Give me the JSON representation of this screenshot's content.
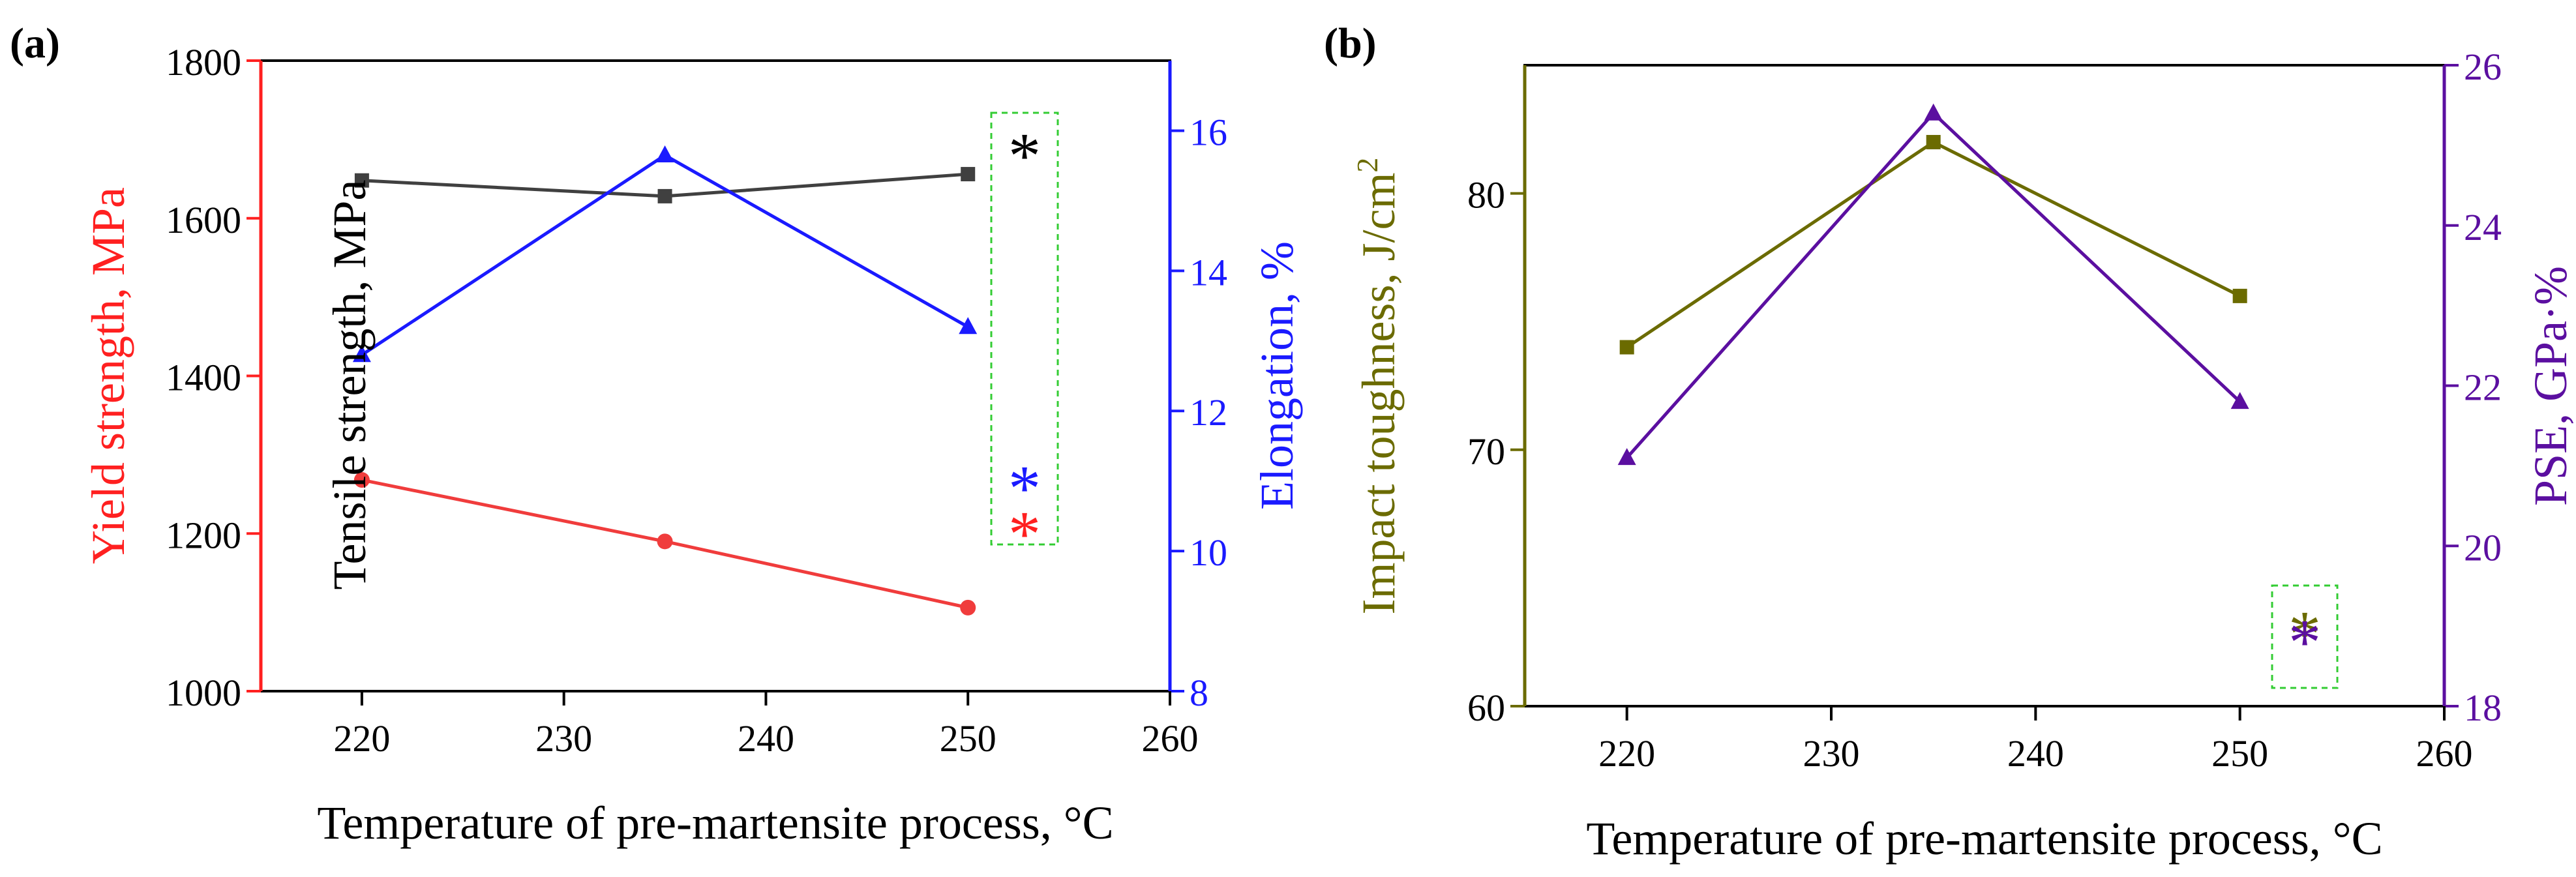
{
  "chart_data": [
    {
      "panel_label": "(a)",
      "type": "line",
      "x": [
        220,
        235,
        250
      ],
      "xlim": [
        215,
        260
      ],
      "xticks": [
        220,
        230,
        240,
        250,
        260
      ],
      "xlabel": "Temperature of pre-martensite process, °C",
      "left_axis": {
        "label_main": "Yield strength, MPa",
        "label_inner": "Tensile strength, MPa",
        "ylim": [
          1000,
          1800
        ],
        "ticks": [
          1000,
          1200,
          1400,
          1600,
          1800
        ],
        "color": "#ff2020"
      },
      "right_axis": {
        "label": "Elongation, %",
        "ylim": [
          8,
          17
        ],
        "ticks": [
          8,
          10,
          12,
          14,
          16
        ],
        "color": "#1a1aff"
      },
      "series": [
        {
          "name": "Tensile strength",
          "axis": "left",
          "color": "#404040",
          "marker": "square",
          "values": [
            1648,
            1628,
            1656
          ]
        },
        {
          "name": "Yield strength",
          "axis": "left",
          "color": "#f03c3c",
          "marker": "circle",
          "values": [
            1268,
            1190,
            1106
          ]
        },
        {
          "name": "Elongation",
          "axis": "right",
          "color": "#1a1aff",
          "marker": "triangle",
          "values": [
            12.8,
            15.65,
            13.2
          ]
        }
      ],
      "annotation_symbol": "*",
      "annotation_colors": [
        "#000000",
        "#1a1aff",
        "#ff2020"
      ]
    },
    {
      "panel_label": "(b)",
      "type": "line",
      "x": [
        220,
        235,
        250
      ],
      "xlim": [
        215,
        260
      ],
      "xticks": [
        220,
        230,
        240,
        250,
        260
      ],
      "xlabel": "Temperature of pre-martensite process, °C",
      "left_axis": {
        "label": "Impact toughness, J/cm",
        "label_sup": "2",
        "ylim": [
          60,
          85
        ],
        "ticks": [
          60,
          70,
          80
        ],
        "color": "#6b6b00"
      },
      "right_axis": {
        "label": "PSE, GPa·%",
        "ylim": [
          18,
          26
        ],
        "ticks": [
          18,
          20,
          22,
          24,
          26
        ],
        "color": "#5b0fa0"
      },
      "series": [
        {
          "name": "Impact toughness",
          "axis": "left",
          "color": "#6b6b00",
          "marker": "square",
          "values": [
            74,
            82,
            76
          ]
        },
        {
          "name": "PSE",
          "axis": "right",
          "color": "#5b0fa0",
          "marker": "triangle",
          "values": [
            21.1,
            25.4,
            21.8
          ]
        }
      ],
      "annotation_symbol": "*",
      "annotation_colors": [
        "#6b6b00",
        "#5b0fa0"
      ]
    }
  ]
}
